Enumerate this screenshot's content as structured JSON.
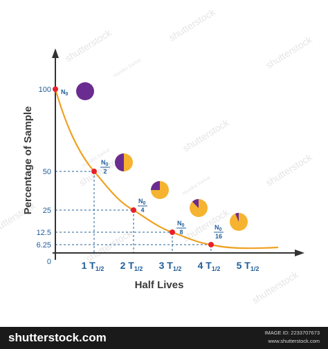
{
  "chart_data": {
    "type": "line",
    "xlabel": "Half Lives",
    "ylabel": "Percentage of Sample",
    "x_tick_labels": [
      {
        "x": 1,
        "main": "1 T",
        "sub": "1/2"
      },
      {
        "x": 2,
        "main": "2 T",
        "sub": "1/2"
      },
      {
        "x": 3,
        "main": "3 T",
        "sub": "1/2"
      },
      {
        "x": 4,
        "main": "4 T",
        "sub": "1/2"
      },
      {
        "x": 5,
        "main": "5 T",
        "sub": "1/2"
      }
    ],
    "y_tick_labels": [
      {
        "y": 100,
        "label": "100"
      },
      {
        "y": 50,
        "label": "50"
      },
      {
        "y": 25,
        "label": "25"
      },
      {
        "y": 12.5,
        "label": "12.5"
      },
      {
        "y": 6.25,
        "label": "6.25"
      },
      {
        "y": 0,
        "label": "0"
      }
    ],
    "xlim": [
      0,
      6
    ],
    "ylim": [
      0,
      100
    ],
    "points": [
      {
        "x": 0,
        "y": 100,
        "label": "N",
        "sub": "0",
        "denom": "",
        "remaining": 1.0
      },
      {
        "x": 1,
        "y": 50,
        "label": "N",
        "sub": "0",
        "denom": "2",
        "remaining": 0.5
      },
      {
        "x": 2,
        "y": 25,
        "label": "N",
        "sub": "0",
        "denom": "4",
        "remaining": 0.25
      },
      {
        "x": 3,
        "y": 12.5,
        "label": "N",
        "sub": "0",
        "denom": "8",
        "remaining": 0.125
      },
      {
        "x": 4,
        "y": 6.25,
        "label": "N",
        "sub": "0",
        "denom": "16",
        "remaining": 0.0625
      }
    ],
    "colors": {
      "curve": "#f0a020",
      "point": "#e8202a",
      "axis": "#333333",
      "guide": "#1f5c99",
      "parent": "#6a2c91",
      "daughter": "#f5b330",
      "text": "#1f5c99"
    }
  },
  "watermarks": {
    "brand": "shutterstock",
    "author": "Nandini Sarkar"
  },
  "footer": {
    "logo": "shutterstock.com",
    "image_id": "IMAGE ID: 2233707673",
    "url": "www.shutterstock.com"
  }
}
